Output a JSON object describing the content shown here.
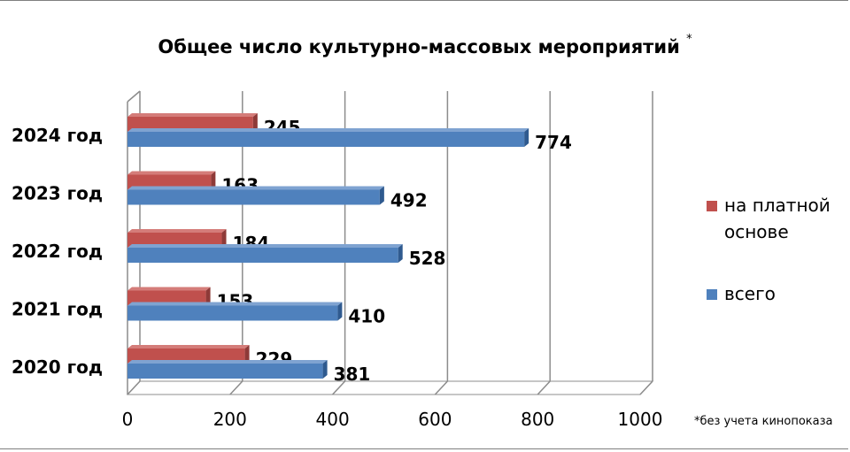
{
  "chart_data": {
    "type": "bar",
    "orientation": "horizontal",
    "title": "Общее число культурно-массовых мероприятий",
    "title_mark": "*",
    "footnote": "*без учета кинопоказа",
    "categories": [
      "2020 год",
      "2021 год",
      "2022 год",
      "2023 год",
      "2024 год"
    ],
    "series": [
      {
        "name": "на платной основе",
        "values": [
          229,
          153,
          184,
          163,
          245
        ],
        "color": "#c0504d"
      },
      {
        "name": "всего",
        "values": [
          381,
          410,
          528,
          492,
          774
        ],
        "color": "#4f81bd"
      }
    ],
    "xlim": [
      0,
      1000
    ],
    "xticks": [
      0,
      200,
      400,
      600,
      800,
      1000
    ],
    "grid": true,
    "legend_position": "right"
  }
}
